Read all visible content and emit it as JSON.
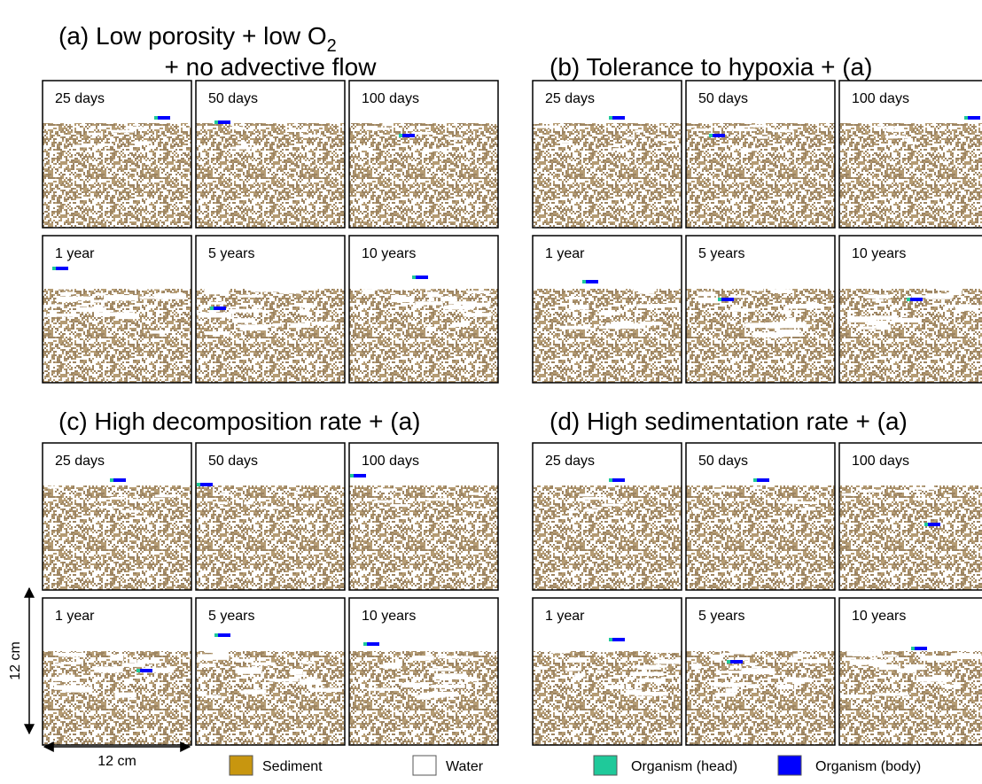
{
  "groups": [
    {
      "title": "(a) Low porosity + low O",
      "title_subscript": "2",
      "title_line2": "+ no advective flow",
      "labels": [
        "25 days",
        "50 days",
        "100 days",
        "1 year",
        "5 years",
        "10 years"
      ]
    },
    {
      "title": "(b) Tolerance to hypoxia + (a)",
      "labels": [
        "25 days",
        "50 days",
        "100 days",
        "1 year",
        "5 years",
        "10 years"
      ]
    },
    {
      "title": "(c) High decomposition rate + (a)",
      "labels": [
        "25 days",
        "50 days",
        "100 days",
        "1 year",
        "5 years",
        "10 years"
      ]
    },
    {
      "title": "(d) High sedimentation rate + (a)",
      "labels": [
        "25 days",
        "50 days",
        "100 days",
        "1 year",
        "5 years",
        "10 years"
      ]
    }
  ],
  "scale": {
    "vertical": "12 cm",
    "horizontal": "12 cm"
  },
  "legend": [
    {
      "label": "Sediment",
      "color": "#c8960f"
    },
    {
      "label": "Water",
      "color": "#ffffff"
    },
    {
      "label": "Organism (head)",
      "color": "#1fc99a"
    },
    {
      "label": "Organism (body)",
      "color": "#0000ff"
    }
  ]
}
